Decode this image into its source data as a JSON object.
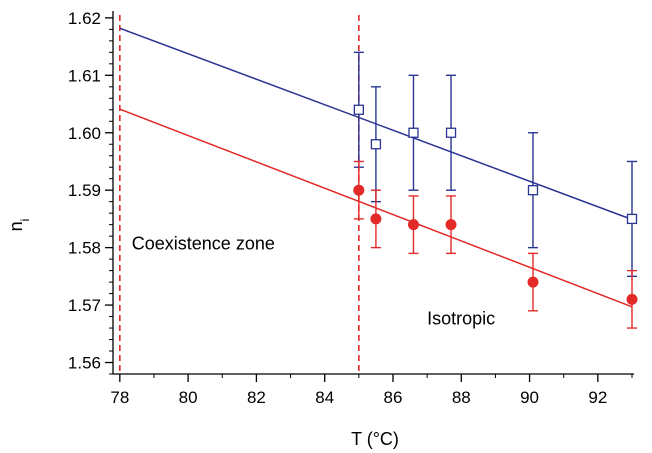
{
  "chart_data": {
    "type": "scatter",
    "title": "",
    "xlabel": "T (°C)",
    "ylabel": "n",
    "ylabel_subscript": "i",
    "xlim": [
      77.8,
      93.0
    ],
    "ylim": [
      1.558,
      1.6205
    ],
    "x_ticks": [
      78,
      80,
      82,
      84,
      86,
      88,
      90,
      92
    ],
    "y_ticks": [
      1.56,
      1.57,
      1.58,
      1.59,
      1.6,
      1.61,
      1.62
    ],
    "x_tick_labels": [
      "78",
      "80",
      "82",
      "84",
      "86",
      "88",
      "90",
      "92"
    ],
    "y_tick_labels": [
      "1.56",
      "1.57",
      "1.58",
      "1.59",
      "1.60",
      "1.61",
      "1.62"
    ],
    "grid": false,
    "series": [
      {
        "marker": "open-square",
        "color": "#2a3593",
        "x": [
          85.0,
          85.5,
          86.6,
          87.7,
          90.1,
          93.0
        ],
        "y": [
          1.604,
          1.598,
          1.6,
          1.6,
          1.59,
          1.585
        ],
        "yerr": [
          0.01,
          0.01,
          0.01,
          0.01,
          0.01,
          0.01
        ],
        "fit_line": {
          "x": [
            78.0,
            93.0
          ],
          "y": [
            1.6182,
            1.5849
          ]
        }
      },
      {
        "marker": "filled-circle",
        "color": "#e32a28",
        "x": [
          85.0,
          85.5,
          86.6,
          87.7,
          90.1,
          93.0
        ],
        "y": [
          1.59,
          1.585,
          1.584,
          1.584,
          1.574,
          1.571
        ],
        "yerr": [
          0.005,
          0.005,
          0.005,
          0.005,
          0.005,
          0.005
        ],
        "fit_line": {
          "x": [
            78.0,
            93.0
          ],
          "y": [
            1.6041,
            1.5697
          ]
        }
      }
    ],
    "vertical_lines": [
      {
        "x": 78.0,
        "color": "#e32a28",
        "style": "dashed"
      },
      {
        "x": 85.0,
        "color": "#e32a28",
        "style": "dashed"
      }
    ],
    "annotations": [
      {
        "text": "Coexistence zone",
        "x": 78.35,
        "y": 1.5797
      },
      {
        "text": "Isotropic",
        "x": 87.0,
        "y": 1.5666
      }
    ]
  }
}
